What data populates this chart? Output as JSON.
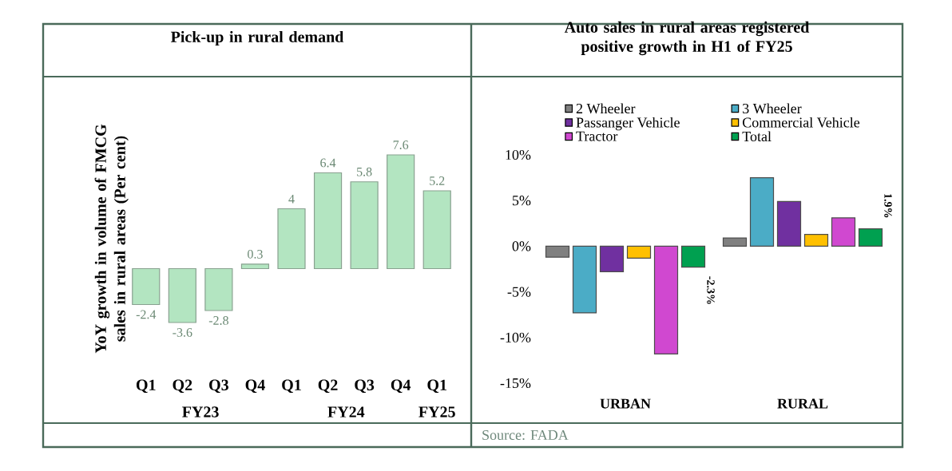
{
  "chart_data": [
    {
      "type": "bar",
      "title": "Pick-up in rural demand",
      "ylabel": "YoY growth in volume of FMCG sales in rural areas (Per cent)",
      "categories": [
        "Q1",
        "Q2",
        "Q3",
        "Q4",
        "Q1",
        "Q2",
        "Q3",
        "Q4",
        "Q1"
      ],
      "values": [
        -2.4,
        -3.6,
        -2.8,
        0.3,
        4,
        6.4,
        5.8,
        7.6,
        5.2
      ],
      "color": "#b3e5c1",
      "data_labels": true,
      "tick_labels": "x",
      "annotations": [
        "FY23",
        "FY24",
        "FY25"
      ]
    },
    {
      "type": "bar",
      "title": "Auto sales in rural areas registered positive growth in H1 of FY25",
      "categories": [
        "URBAN",
        "RURAL"
      ],
      "series": [
        {
          "name": "2 Wheeler",
          "color": "#808080",
          "values": [
            -1.2,
            0.9
          ]
        },
        {
          "name": "3 Wheeler",
          "color": "#4bacc6",
          "values": [
            -7.3,
            7.5
          ]
        },
        {
          "name": "Passanger Vehicle",
          "color": "#7030a0",
          "values": [
            -2.8,
            4.9
          ]
        },
        {
          "name": "Commercial Vehicle",
          "color": "#ffc000",
          "values": [
            -1.3,
            1.3
          ]
        },
        {
          "name": "Tractor",
          "color": "#d048d0",
          "values": [
            -11.8,
            3.1
          ]
        },
        {
          "name": "Total",
          "color": "#00a050",
          "values": [
            -2.3,
            1.9
          ],
          "value_labels": [
            "-2.3%",
            "1.9%"
          ]
        }
      ],
      "ylim": [
        -15,
        10
      ],
      "yticks": [
        {
          "value": -15,
          "label": "-15%"
        },
        {
          "value": -10,
          "label": "-10%"
        },
        {
          "value": -5,
          "label": "-5%"
        },
        {
          "value": 0,
          "label": "0%"
        },
        {
          "value": 5,
          "label": "5%"
        },
        {
          "value": 10,
          "label": "10%"
        }
      ],
      "legend": "top",
      "annotations": [
        "Source: FADA"
      ]
    }
  ]
}
